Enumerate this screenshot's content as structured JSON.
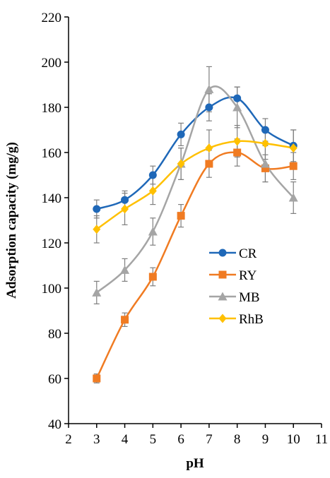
{
  "chart_data": {
    "type": "line",
    "xlabel": "pH",
    "ylabel": "Adsorption  capacity  (mg/g)",
    "xlim": [
      2,
      11
    ],
    "ylim": [
      40,
      220
    ],
    "xticks": [
      2,
      3,
      4,
      5,
      6,
      7,
      8,
      9,
      10,
      11
    ],
    "yticks": [
      40,
      60,
      80,
      100,
      120,
      140,
      160,
      180,
      200,
      220
    ],
    "grid": false,
    "legend_position": "center-right",
    "x": [
      3,
      4,
      5,
      6,
      7,
      8,
      9,
      10
    ],
    "series": [
      {
        "name": "CR",
        "color": "#1F68B8",
        "marker": "circle",
        "values": [
          135,
          139,
          150,
          168,
          180,
          184,
          170,
          163
        ],
        "errors": [
          4,
          4,
          4,
          5,
          6,
          5,
          5,
          7
        ]
      },
      {
        "name": "RY",
        "color": "#F07B22",
        "marker": "square",
        "values": [
          60,
          86,
          105,
          132,
          155,
          160,
          153,
          154
        ],
        "errors": [
          2,
          3,
          4,
          5,
          6,
          6,
          6,
          6
        ]
      },
      {
        "name": "MB",
        "color": "#A5A5A5",
        "marker": "triangle",
        "values": [
          98,
          108,
          125,
          155,
          188,
          180,
          155,
          140
        ],
        "errors": [
          5,
          5,
          6,
          7,
          10,
          9,
          8,
          7
        ]
      },
      {
        "name": "RhB",
        "color": "#FFC000",
        "marker": "diamond",
        "values": [
          126,
          135,
          143,
          155,
          162,
          165,
          164,
          162
        ],
        "errors": [
          6,
          7,
          6,
          7,
          8,
          7,
          7,
          8
        ]
      }
    ]
  }
}
